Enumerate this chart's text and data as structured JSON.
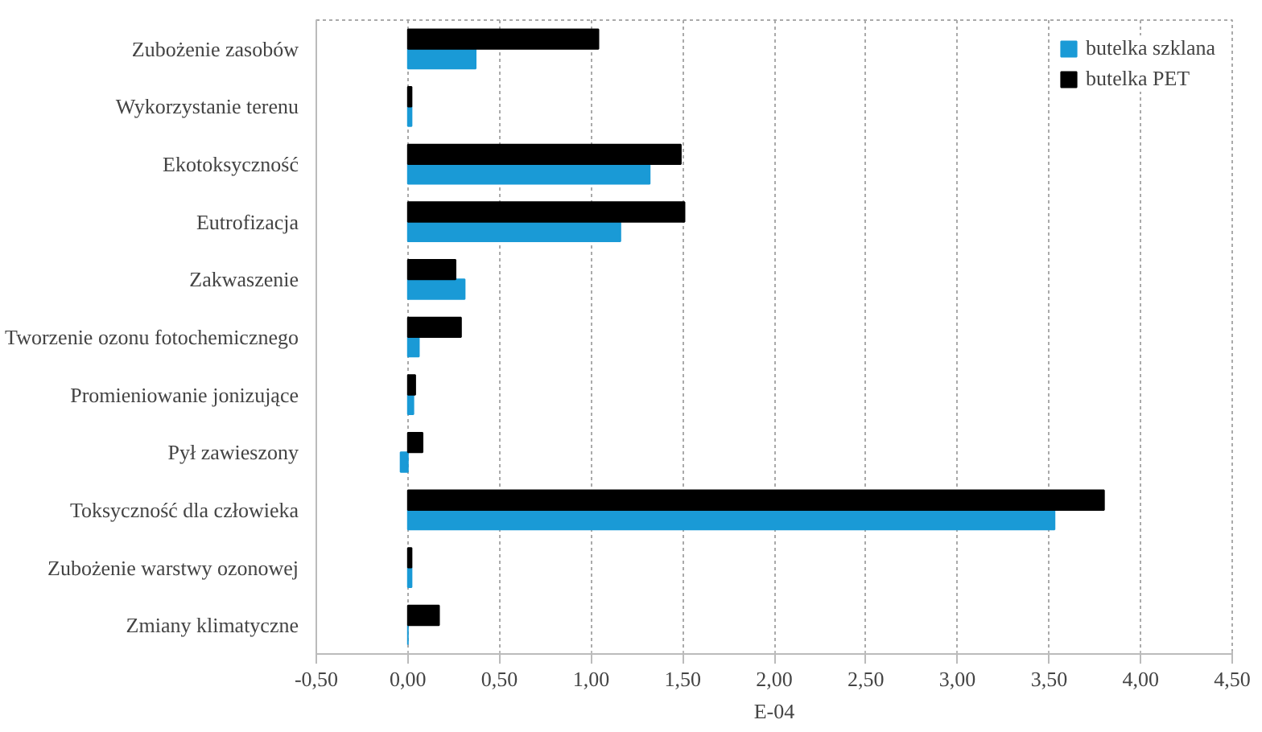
{
  "chart_data": {
    "type": "bar",
    "orientation": "horizontal",
    "xlabel": "E-04",
    "categories": [
      "Zubożenie zasobów",
      "Wykorzystanie terenu",
      "Ekotoksyczność",
      "Eutrofizacja",
      "Zakwaszenie",
      "Tworzenie ozonu fotochemicznego",
      "Promieniowanie jonizujące",
      "Pył zawieszony",
      "Toksyczność dla człowieka",
      "Zubożenie warstwy ozonowej",
      "Zmiany klimatyczne"
    ],
    "series": [
      {
        "name": "butelka szklana",
        "color": "#1a9ad6",
        "values": [
          0.37,
          0.02,
          1.32,
          1.16,
          0.31,
          0.06,
          0.03,
          -0.04,
          3.53,
          0.02,
          0
        ]
      },
      {
        "name": "butelka PET",
        "color": "#000000",
        "values": [
          1.04,
          0.02,
          1.49,
          1.51,
          0.26,
          0.29,
          0.04,
          0.08,
          3.8,
          0.02,
          0.17
        ]
      }
    ],
    "xlim": [
      -0.5,
      4.5
    ],
    "xticks": [
      {
        "value": -0.5,
        "label": "-0,50"
      },
      {
        "value": 0,
        "label": "0,00"
      },
      {
        "value": 0.5,
        "label": "0,50"
      },
      {
        "value": 1,
        "label": "1,00"
      },
      {
        "value": 1.5,
        "label": "1,50"
      },
      {
        "value": 2,
        "label": "2,00"
      },
      {
        "value": 2.5,
        "label": "2,50"
      },
      {
        "value": 3,
        "label": "3,00"
      },
      {
        "value": 3.5,
        "label": "3,50"
      },
      {
        "value": 4,
        "label": "4,00"
      },
      {
        "value": 4.5,
        "label": "4,50"
      }
    ],
    "grid": "x",
    "legend": "top right"
  }
}
